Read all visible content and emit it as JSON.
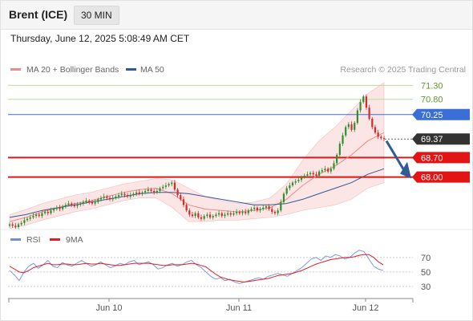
{
  "header": {
    "title": "Brent (ICE)",
    "timeframe": "30 MIN"
  },
  "timestamp": "Thursday, June 12, 2025 5:08:49 AM CET",
  "attribution": "Research © 2025 Trading Central",
  "legend": {
    "ma20_bb": {
      "label": "MA 20 + Bollinger Bands",
      "color": "#f08a84"
    },
    "ma50": {
      "label": "MA 50",
      "color": "#2f5b96"
    }
  },
  "rsi_legend": {
    "rsi": {
      "label": "RSI",
      "color": "#6f8fd8"
    },
    "ma9": {
      "label": "9MA",
      "color": "#e02020"
    }
  },
  "colors": {
    "up": "#2f8f2f",
    "down": "#d32a2a",
    "band": "#fbdcdc",
    "resistance_line": "#b9dd99",
    "pivot": "#3a6fd8",
    "support": "#e21414",
    "arrow": "#2f5b96"
  },
  "chart_data": [
    {
      "type": "candlestick",
      "title": "Brent (ICE) 30 MIN",
      "x_labels": [
        "Jun 10",
        "Jun 11",
        "Jun 12"
      ],
      "y_range": [
        66.2,
        71.6
      ],
      "levels": [
        {
          "value": 71.3,
          "label": "71.30",
          "kind": "resistance"
        },
        {
          "value": 70.8,
          "label": "70.80",
          "kind": "resistance"
        },
        {
          "value": 70.25,
          "label": "70.25",
          "kind": "pivot"
        },
        {
          "value": 69.37,
          "label": "69.37",
          "kind": "last"
        },
        {
          "value": 68.7,
          "label": "68.70",
          "kind": "support"
        },
        {
          "value": 68.0,
          "label": "68.00",
          "kind": "support"
        }
      ],
      "close": [
        66.3,
        66.25,
        66.2,
        66.3,
        66.35,
        66.45,
        66.5,
        66.55,
        66.6,
        66.65,
        66.6,
        66.7,
        66.75,
        66.7,
        66.8,
        66.85,
        66.9,
        66.85,
        66.95,
        67.0,
        67.05,
        67.0,
        66.95,
        67.0,
        67.05,
        67.1,
        67.15,
        67.1,
        67.05,
        67.1,
        67.2,
        67.25,
        67.3,
        67.25,
        67.2,
        67.25,
        67.3,
        67.35,
        67.4,
        67.35,
        67.3,
        67.35,
        67.4,
        67.45,
        67.4,
        67.45,
        67.5,
        67.55,
        67.5,
        67.45,
        67.5,
        67.6,
        67.65,
        67.7,
        67.75,
        67.8,
        67.55,
        67.35,
        67.2,
        67.0,
        66.8,
        66.65,
        66.6,
        66.7,
        66.55,
        66.5,
        66.6,
        66.65,
        66.55,
        66.6,
        66.65,
        66.7,
        66.6,
        66.65,
        66.7,
        66.65,
        66.7,
        66.75,
        66.7,
        66.75,
        66.7,
        66.8,
        66.85,
        66.9,
        66.8,
        66.85,
        66.9,
        66.95,
        66.85,
        66.75,
        66.7,
        66.8,
        67.1,
        67.4,
        67.6,
        67.7,
        67.8,
        67.85,
        67.9,
        68.0,
        68.05,
        68.1,
        68.15,
        68.1,
        68.05,
        68.2,
        68.25,
        68.3,
        68.2,
        68.3,
        68.5,
        68.8,
        69.2,
        69.5,
        69.8,
        69.9,
        69.7,
        69.95,
        70.4,
        70.7,
        70.9,
        70.5,
        70.1,
        69.8,
        69.6,
        69.45,
        69.4,
        69.37
      ],
      "ma20_approx": [
        66.4,
        66.55,
        66.75,
        66.9,
        67.05,
        67.15,
        67.3,
        67.45,
        67.55,
        67.6,
        67.4,
        67.0,
        66.85,
        66.8,
        66.75,
        66.8,
        66.9,
        67.2,
        67.7,
        68.1,
        68.4,
        68.8,
        69.3,
        69.6
      ],
      "ma50_approx": [
        66.55,
        66.65,
        66.8,
        66.9,
        67.0,
        67.1,
        67.2,
        67.3,
        67.4,
        67.45,
        67.45,
        67.4,
        67.3,
        67.2,
        67.1,
        67.0,
        67.0,
        67.05,
        67.2,
        67.4,
        67.6,
        67.8,
        68.1,
        68.3
      ]
    },
    {
      "type": "line",
      "title": "RSI",
      "y_ticks": [
        70,
        50,
        30
      ],
      "y_range": [
        20,
        82
      ],
      "series": [
        {
          "name": "RSI",
          "values": [
            52,
            46,
            38,
            50,
            58,
            62,
            55,
            60,
            66,
            58,
            56,
            63,
            60,
            58,
            62,
            66,
            62,
            58,
            60,
            64,
            60,
            56,
            58,
            62,
            60,
            64,
            66,
            60,
            62,
            64,
            60,
            54,
            56,
            60,
            62,
            58,
            60,
            64,
            66,
            60,
            56,
            50,
            44,
            40,
            42,
            38,
            40,
            36,
            34,
            36,
            38,
            40,
            42,
            40,
            44,
            46,
            48,
            46,
            44,
            48,
            52,
            56,
            62,
            68,
            70,
            66,
            72,
            70,
            74,
            72,
            68,
            70,
            76,
            80,
            78,
            68,
            58,
            54,
            52
          ]
        },
        {
          "name": "9MA",
          "values": [
            58,
            54,
            50,
            49,
            52,
            56,
            58,
            60,
            62,
            60,
            60,
            61,
            61,
            60,
            60,
            61,
            62,
            61,
            61,
            62,
            61,
            60,
            59,
            59,
            60,
            61,
            62,
            62,
            62,
            62,
            61,
            60,
            59,
            59,
            60,
            60,
            60,
            61,
            62,
            61,
            59,
            57,
            52,
            47,
            43,
            41,
            39,
            38,
            37,
            36,
            37,
            38,
            39,
            40,
            41,
            43,
            45,
            46,
            47,
            48,
            50,
            52,
            55,
            58,
            61,
            63,
            65,
            67,
            68,
            69,
            70,
            70,
            71,
            73,
            74,
            74,
            70,
            64,
            60
          ]
        }
      ]
    }
  ]
}
